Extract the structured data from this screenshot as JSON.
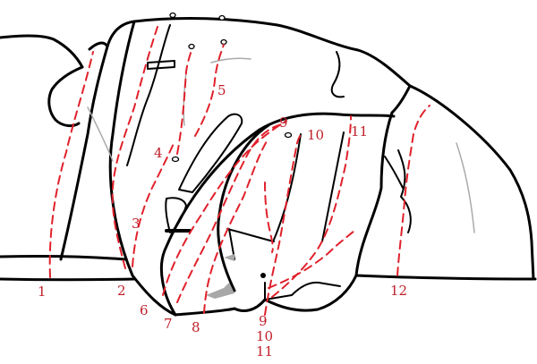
{
  "colors": {
    "route_line": "#e0212b",
    "route_label": "#c0202a",
    "outline": "#000000",
    "shadow_fill": "#a8a8a8"
  },
  "routes": [
    {
      "number": "1"
    },
    {
      "number": "2"
    },
    {
      "number": "3"
    },
    {
      "number": "4"
    },
    {
      "number": "5"
    },
    {
      "number": "6"
    },
    {
      "number": "7"
    },
    {
      "number": "8"
    },
    {
      "number": "9"
    },
    {
      "number": "10"
    },
    {
      "number": "11"
    },
    {
      "number": "12"
    }
  ],
  "bottom_labels": [
    "9",
    "10",
    "11"
  ],
  "icons": [
    "bolt-icon"
  ]
}
